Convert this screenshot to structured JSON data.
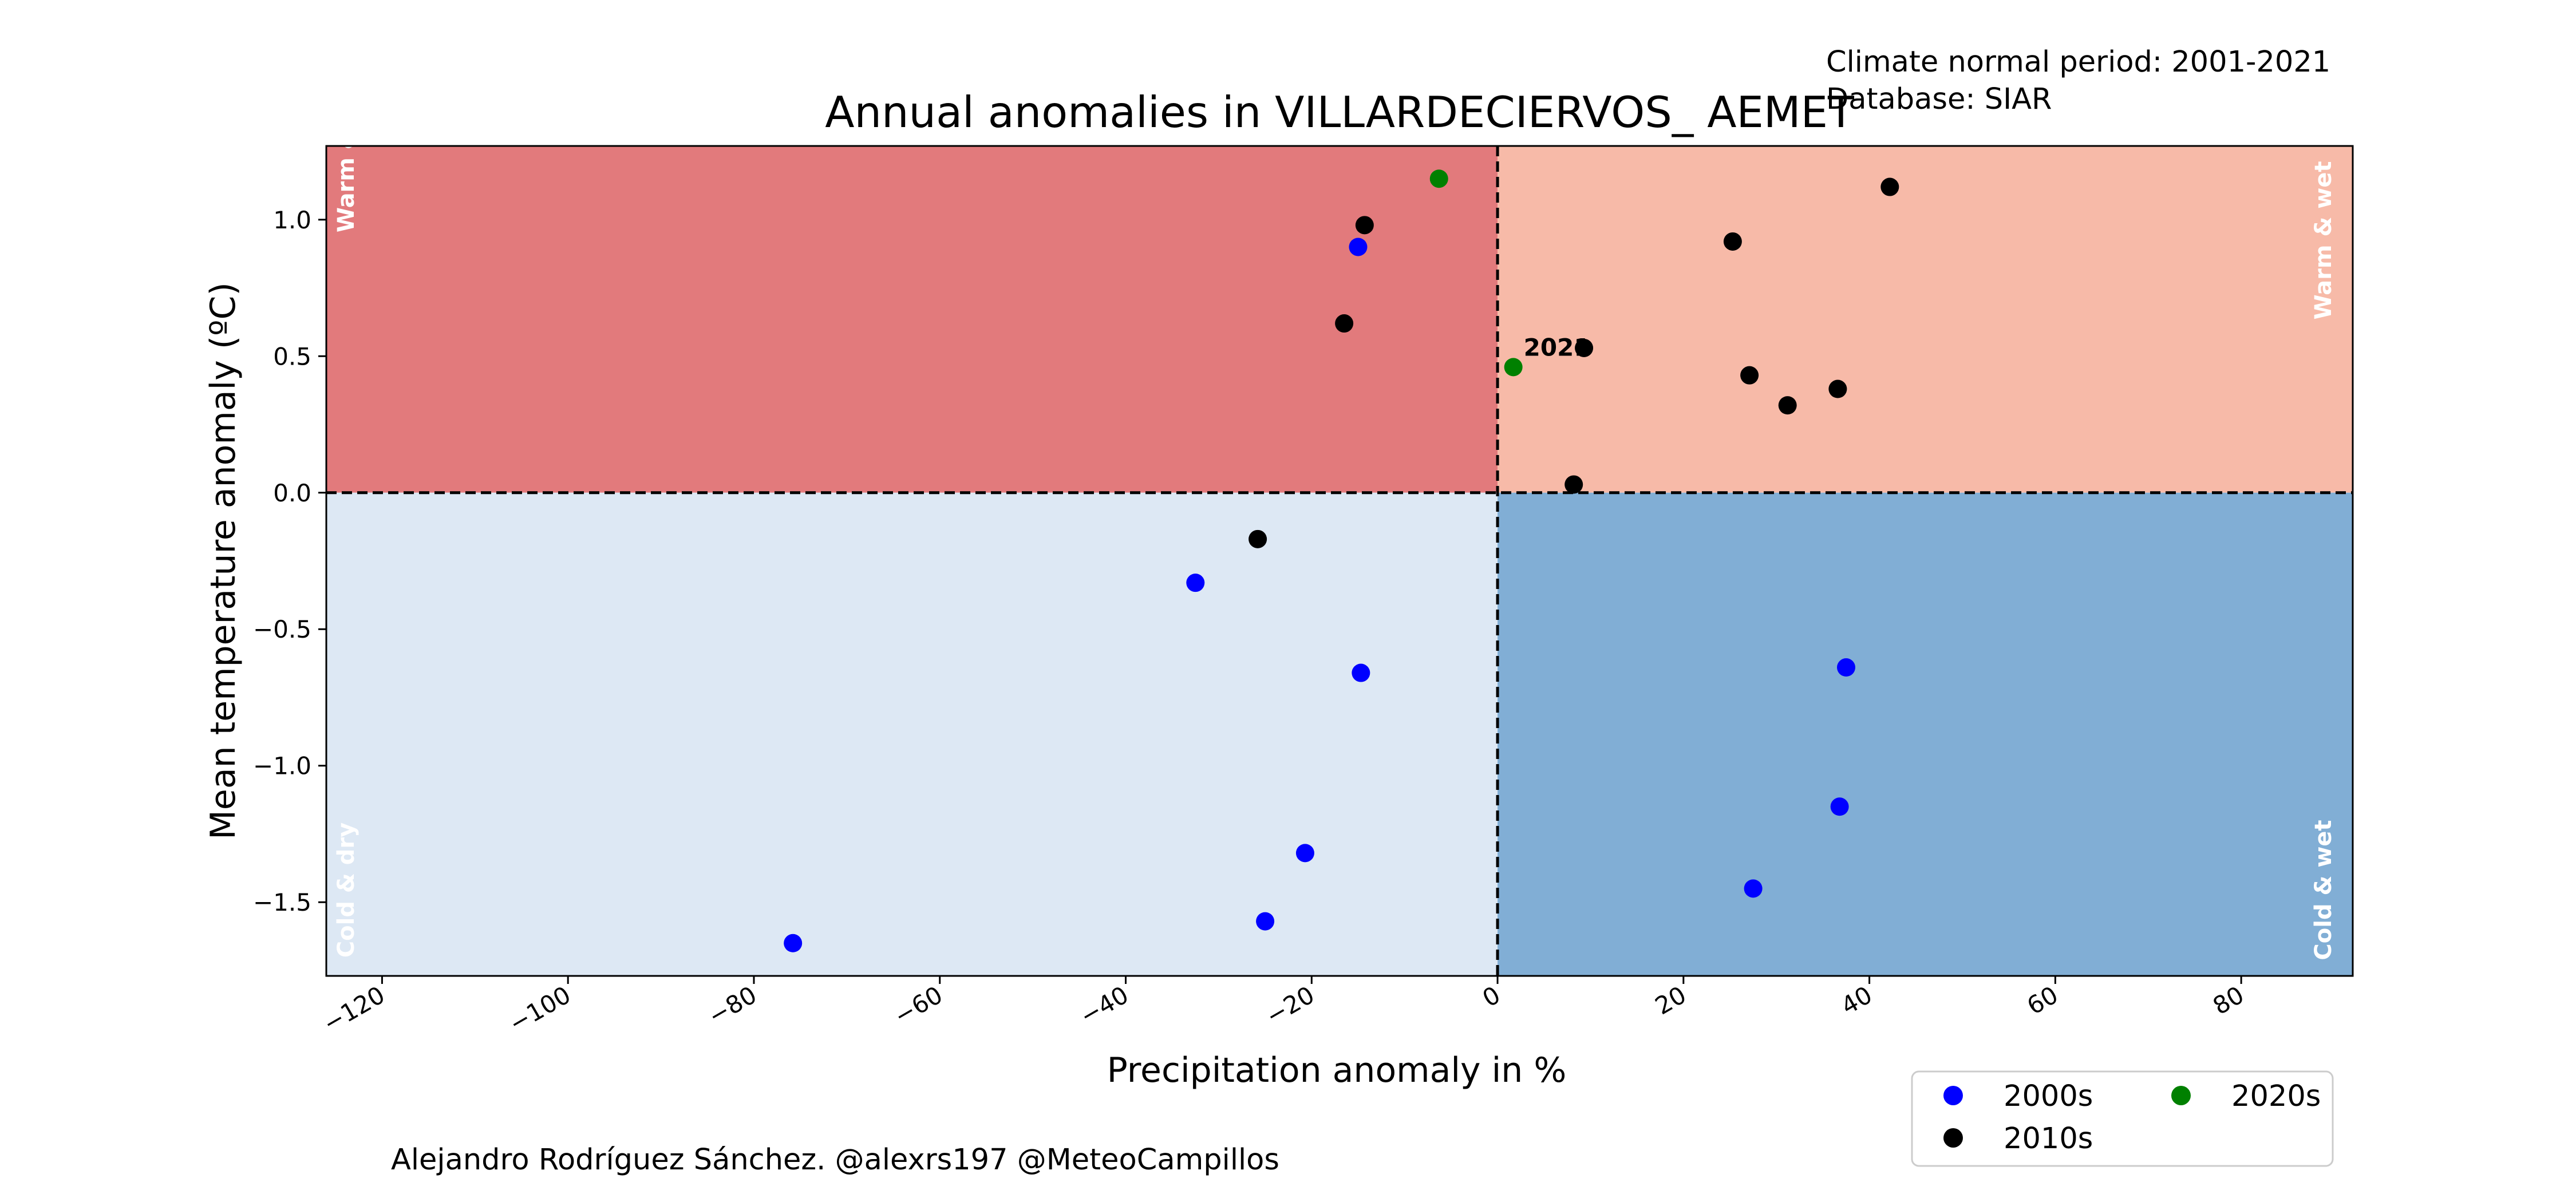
{
  "title": "Annual anomalies in VILLARDECIERVOS_ AEMET",
  "climate_note": "Climate normal period: 2001-2021",
  "database_note": "Database: SIAR",
  "credit": "Alejandro Rodríguez Sánchez. @alexrs197 @MeteoCampillos",
  "colors": {
    "warm_dry": "#e27a7c",
    "warm_wet": "#f7baa8",
    "cold_dry": "#dde8f4",
    "cold_wet": "#81aed5",
    "2000s": "#0000ff",
    "2010s": "#000000",
    "2020s": "#008000"
  },
  "quadrant_labels": {
    "warm_dry": "Warm & dry",
    "warm_wet": "Warm & wet",
    "cold_dry": "Cold & dry",
    "cold_wet": "Cold & wet"
  },
  "legend": {
    "position": "bottom-right, below plot",
    "entries": [
      {
        "label": "2000s",
        "color": "#0000ff"
      },
      {
        "label": "2010s",
        "color": "#000000"
      },
      {
        "label": "2020s",
        "color": "#008000"
      }
    ]
  },
  "chart_data": {
    "type": "scatter",
    "title": "Annual anomalies in VILLARDECIERVOS_ AEMET",
    "xlabel": "Precipitation anomaly in %",
    "ylabel": "Mean temperature anomaly (ºC)",
    "xlim": [
      -126,
      92
    ],
    "ylim": [
      -1.77,
      1.27
    ],
    "x_ticks": [
      -120,
      -100,
      -80,
      -60,
      -40,
      -20,
      0,
      20,
      40,
      60,
      80
    ],
    "x_tick_labels": [
      "−120",
      "−100",
      "−80",
      "−60",
      "−40",
      "−20",
      "0",
      "20",
      "40",
      "60",
      "80"
    ],
    "y_ticks": [
      1.0,
      0.5,
      0.0,
      -0.5,
      -1.0,
      -1.5
    ],
    "y_tick_labels": [
      "1.0",
      "0.5",
      "0.0",
      "−0.5",
      "−1.0",
      "−1.5"
    ],
    "reference_lines": {
      "x": 0,
      "y": 0
    },
    "grid": false,
    "series": [
      {
        "name": "2000s",
        "color": "#0000ff",
        "points": [
          {
            "x": -15,
            "y": 0.9
          },
          {
            "x": -32.5,
            "y": -0.33
          },
          {
            "x": -14.7,
            "y": -0.66
          },
          {
            "x": -20.7,
            "y": -1.32
          },
          {
            "x": -25,
            "y": -1.57
          },
          {
            "x": -75.8,
            "y": -1.65
          },
          {
            "x": 37.5,
            "y": -0.64
          },
          {
            "x": 36.8,
            "y": -1.15
          },
          {
            "x": 27.5,
            "y": -1.45
          }
        ]
      },
      {
        "name": "2010s",
        "color": "#000000",
        "points": [
          {
            "x": -14.3,
            "y": 0.98
          },
          {
            "x": -16.5,
            "y": 0.62
          },
          {
            "x": -25.8,
            "y": -0.17
          },
          {
            "x": 25.3,
            "y": 0.92
          },
          {
            "x": 42.2,
            "y": 1.12
          },
          {
            "x": 9.3,
            "y": 0.53
          },
          {
            "x": 27.1,
            "y": 0.43
          },
          {
            "x": 31.2,
            "y": 0.32
          },
          {
            "x": 36.6,
            "y": 0.38
          },
          {
            "x": 8.2,
            "y": 0.03
          }
        ]
      },
      {
        "name": "2020s",
        "color": "#008000",
        "points": [
          {
            "x": -6.3,
            "y": 1.15
          },
          {
            "x": 1.7,
            "y": 0.46,
            "label": "2021"
          }
        ]
      }
    ]
  }
}
